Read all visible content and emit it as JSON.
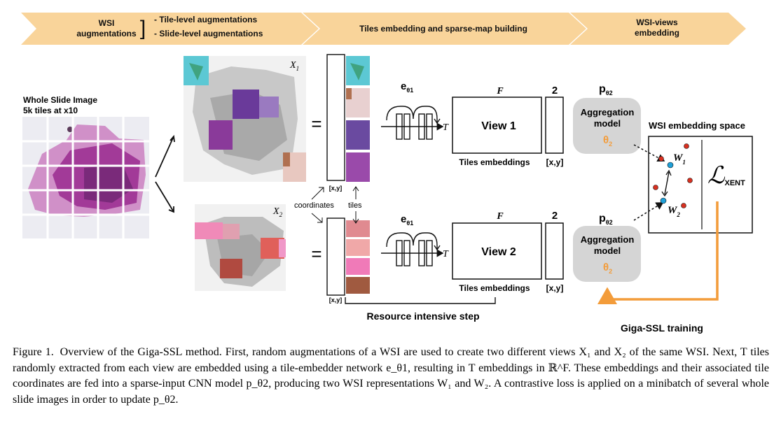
{
  "banner": {
    "stage1_title_line1": "WSI",
    "stage1_title_line2": "augmentations",
    "stage1_item1": "- Tile-level augmentations",
    "stage1_item2": "- Slide-level augmentations",
    "stage2_title": "Tiles embedding and sparse-map building",
    "stage3_title_line1": "WSI-views",
    "stage3_title_line2": "embedding"
  },
  "wsi": {
    "title_line1": "Whole Slide Image",
    "title_line2": "5k tiles at x10"
  },
  "views": {
    "x1_label": "X",
    "x1_sub": "1",
    "x2_label": "X",
    "x2_sub": "2",
    "equals": "=",
    "coords_tag": "[x,y]",
    "coordinates_label": "coordinates",
    "tiles_label": "tiles"
  },
  "embedding": {
    "encoder_label": "e",
    "encoder_sub": "θ1",
    "t_label": "T",
    "f_label": "F",
    "two_label": "2",
    "view1_label": "View 1",
    "view2_label": "View 2",
    "tiles_embeddings_label": "Tiles embeddings",
    "coords_label": "[x,y]",
    "resource_label": "Resource intensive step"
  },
  "aggregation": {
    "p_label": "p",
    "p_sub": "θ2",
    "model_line1": "Aggregation",
    "model_line2": "model",
    "theta_label": "θ",
    "theta_sub": "2"
  },
  "space": {
    "title": "WSI embedding space",
    "w1_label": "W",
    "w1_sub": "1",
    "w2_label": "W",
    "w2_sub": "2",
    "loss_symbol": "ℒ",
    "loss_sub": "XENT",
    "training_label": "Giga-SSL training"
  },
  "caption": {
    "label": "Figure 1.",
    "text": "Overview of the Giga-SSL method. First, random augmentations of a WSI are used to create two different views X₁ and X₂ of the same WSI. Next, T tiles randomly extracted from each view are embedded using a tile-embedder network e_θ1, resulting in T embeddings in ℝ^F. These embeddings and their associated tile coordinates are fed into a sparse-input CNN model p_θ2, producing two WSI representations W₁ and W₂. A contrastive loss is applied on a minibatch of several whole slide images in order to update p_θ2."
  },
  "colors": {
    "banner": "#f9d49a",
    "orange": "#f39c3a",
    "agg_box": "#d5d5d5",
    "tissue_pink": "#d070b0",
    "tissue_purple": "#7a2a7a"
  }
}
